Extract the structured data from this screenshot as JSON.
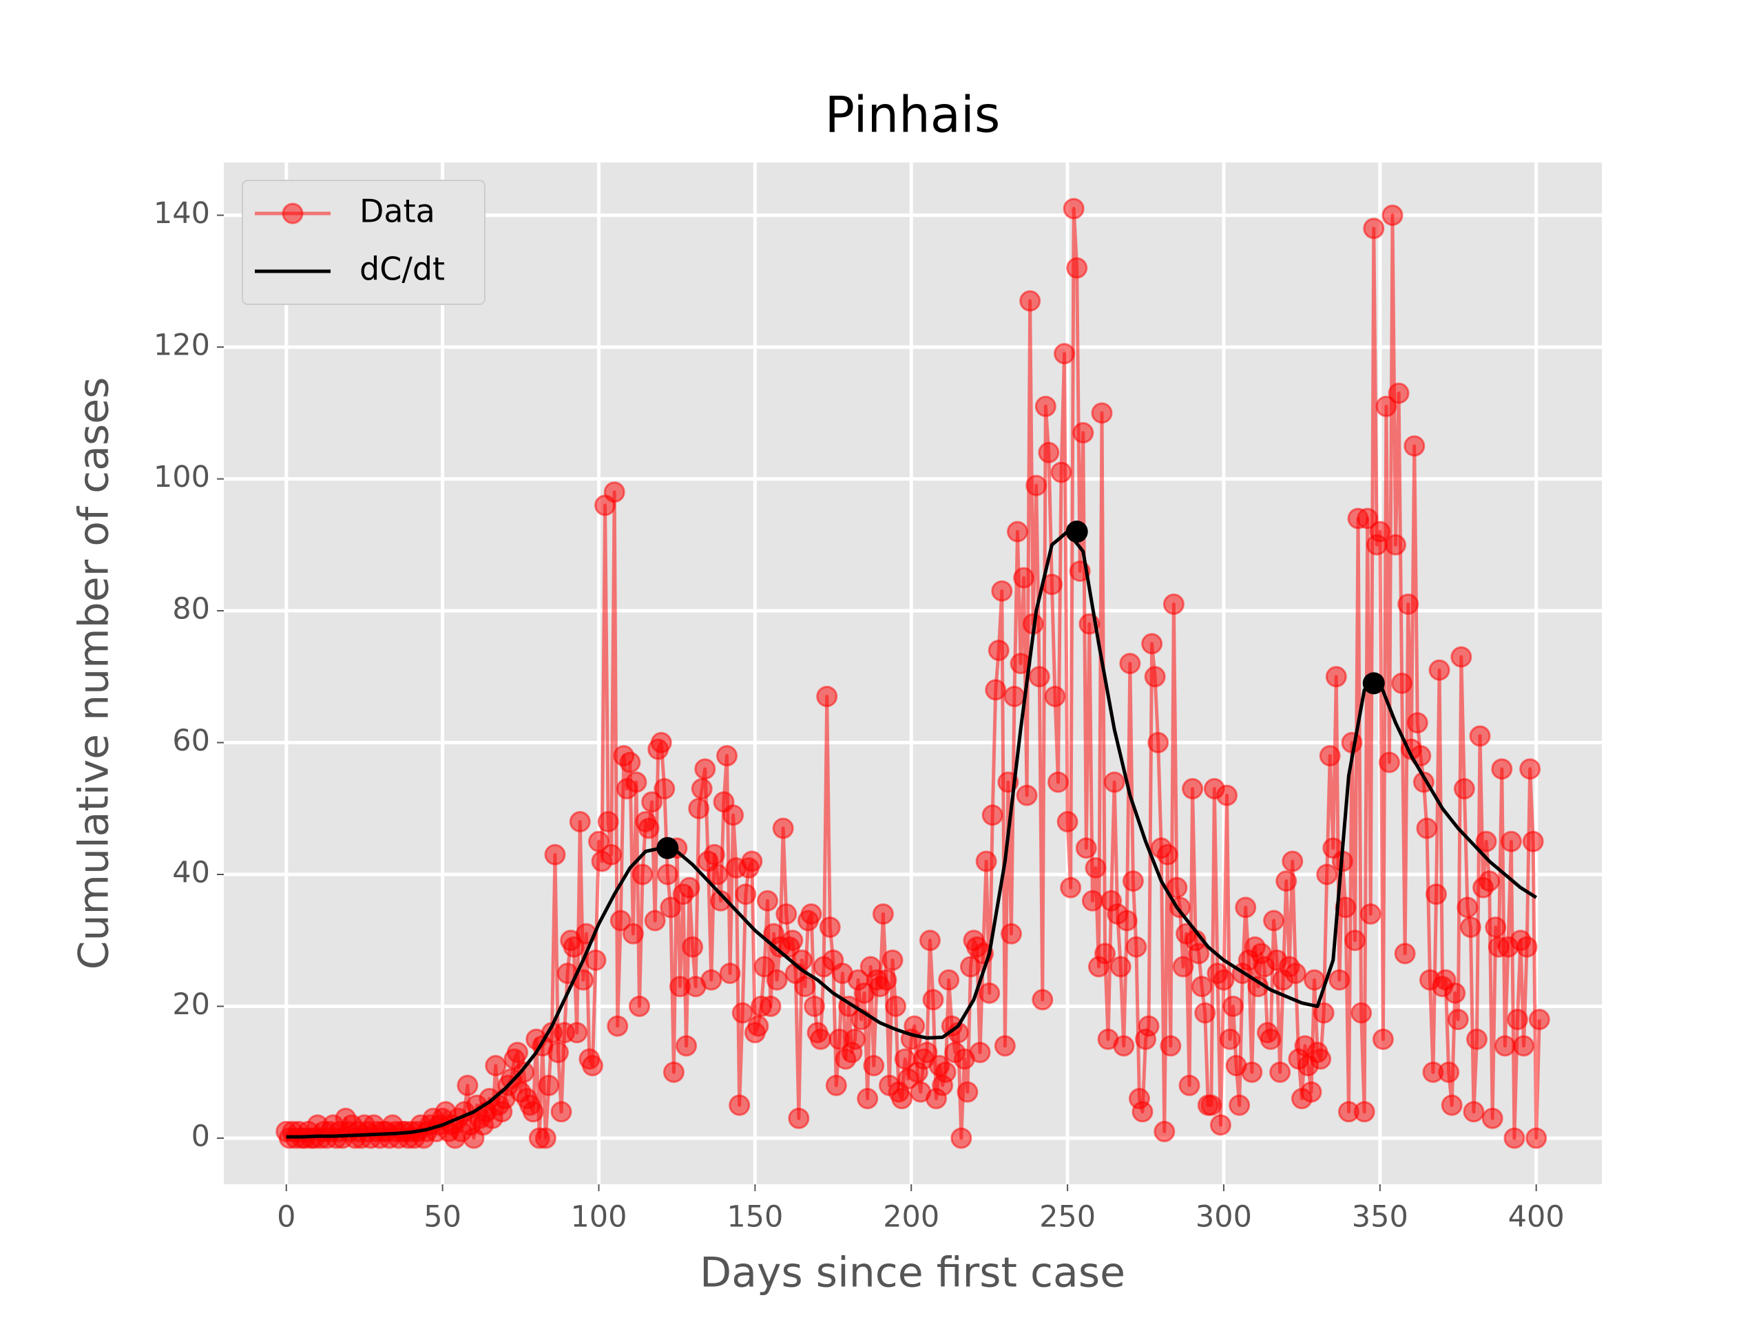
{
  "chart_data": {
    "type": "line",
    "title": "Pinhais",
    "xlabel": "Days since first case",
    "ylabel": "Cumulative number of cases",
    "xlim": [
      -20,
      421
    ],
    "ylim": [
      -7,
      148
    ],
    "xticks": [
      0,
      50,
      100,
      150,
      200,
      250,
      300,
      350,
      400
    ],
    "yticks": [
      0,
      20,
      40,
      60,
      80,
      100,
      120,
      140
    ],
    "grid": true,
    "legend": "upper left",
    "series": [
      {
        "name": "Data",
        "color": "#ff0000",
        "markers": true,
        "x": [
          0,
          1,
          2,
          3,
          4,
          5,
          6,
          7,
          8,
          9,
          10,
          11,
          12,
          13,
          14,
          15,
          16,
          17,
          18,
          19,
          20,
          21,
          22,
          23,
          24,
          25,
          26,
          27,
          28,
          29,
          30,
          31,
          32,
          33,
          34,
          35,
          36,
          37,
          38,
          39,
          40,
          41,
          42,
          43,
          44,
          45,
          46,
          47,
          48,
          49,
          50,
          51,
          52,
          53,
          54,
          55,
          56,
          57,
          58,
          59,
          60,
          61,
          62,
          63,
          64,
          65,
          66,
          67,
          68,
          69,
          70,
          71,
          72,
          73,
          74,
          75,
          76,
          77,
          78,
          79,
          80,
          81,
          82,
          83,
          84,
          85,
          86,
          87,
          88,
          89,
          90,
          91,
          92,
          93,
          94,
          95,
          96,
          97,
          98,
          99,
          100,
          101,
          102,
          103,
          104,
          105,
          106,
          107,
          108,
          109,
          110,
          111,
          112,
          113,
          114,
          115,
          116,
          117,
          118,
          119,
          120,
          121,
          122,
          123,
          124,
          125,
          126,
          127,
          128,
          129,
          130,
          131,
          132,
          133,
          134,
          135,
          136,
          137,
          138,
          139,
          140,
          141,
          142,
          143,
          144,
          145,
          146,
          147,
          148,
          149,
          150,
          151,
          152,
          153,
          154,
          155,
          156,
          157,
          158,
          159,
          160,
          161,
          162,
          163,
          164,
          165,
          166,
          167,
          168,
          169,
          170,
          171,
          172,
          173,
          174,
          175,
          176,
          177,
          178,
          179,
          180,
          181,
          182,
          183,
          184,
          185,
          186,
          187,
          188,
          189,
          190,
          191,
          192,
          193,
          194,
          195,
          196,
          197,
          198,
          199,
          200,
          201,
          202,
          203,
          204,
          205,
          206,
          207,
          208,
          209,
          210,
          211,
          212,
          213,
          214,
          215,
          216,
          217,
          218,
          219,
          220,
          221,
          222,
          223,
          224,
          225,
          226,
          227,
          228,
          229,
          230,
          231,
          232,
          233,
          234,
          235,
          236,
          237,
          238,
          239,
          240,
          241,
          242,
          243,
          244,
          245,
          246,
          247,
          248,
          249,
          250,
          251,
          252,
          253,
          254,
          255,
          256,
          257,
          258,
          259,
          260,
          261,
          262,
          263,
          264,
          265,
          266,
          267,
          268,
          269,
          270,
          271,
          272,
          273,
          274,
          275,
          276,
          277,
          278,
          279,
          280,
          281,
          282,
          283,
          284,
          285,
          286,
          287,
          288,
          289,
          290,
          291,
          292,
          293,
          294,
          295,
          296,
          297,
          298,
          299,
          300,
          301,
          302,
          303,
          304,
          305,
          306,
          307,
          308,
          309,
          310,
          311,
          312,
          313,
          314,
          315,
          316,
          317,
          318,
          319,
          320,
          321,
          322,
          323,
          324,
          325,
          326,
          327,
          328,
          329,
          330,
          331,
          332,
          333,
          334,
          335,
          336,
          337,
          338,
          339,
          340,
          341,
          342,
          343,
          344,
          345,
          346,
          347,
          348,
          349,
          350,
          351,
          352,
          353,
          354,
          355,
          356,
          357,
          358,
          359,
          360,
          361,
          362,
          363,
          364,
          365,
          366,
          367,
          368,
          369,
          370,
          371,
          372,
          373,
          374,
          375,
          376,
          377,
          378,
          379,
          380,
          381,
          382,
          383,
          384,
          385,
          386,
          387,
          388,
          389,
          390,
          391,
          392,
          393,
          394,
          395,
          396,
          397,
          398,
          399,
          400,
          401
        ],
        "values": [
          1,
          0,
          1,
          0,
          1,
          0,
          0,
          1,
          0,
          0,
          2,
          0,
          1,
          0,
          1,
          2,
          0,
          1,
          0,
          3,
          1,
          2,
          0,
          1,
          0,
          2,
          1,
          0,
          2,
          1,
          0,
          1,
          1,
          0,
          2,
          1,
          0,
          1,
          1,
          0,
          1,
          0,
          1,
          2,
          0,
          1,
          2,
          3,
          1,
          2,
          3,
          4,
          1,
          2,
          0,
          3,
          1,
          4,
          8,
          2,
          0,
          5,
          3,
          2,
          4,
          6,
          3,
          11,
          5,
          4,
          6,
          8,
          9,
          12,
          13,
          7,
          10,
          6,
          5,
          4,
          15,
          0,
          14,
          0,
          8,
          16,
          43,
          13,
          4,
          16,
          25,
          30,
          29,
          16,
          48,
          24,
          31,
          12,
          11,
          27,
          45,
          42,
          96,
          48,
          43,
          98,
          17,
          33,
          58,
          53,
          57,
          31,
          54,
          20,
          40,
          48,
          47,
          51,
          33,
          59,
          60,
          53,
          40,
          35,
          10,
          44,
          23,
          37,
          14,
          38,
          29,
          23,
          50,
          53,
          56,
          42,
          24,
          43,
          40,
          36,
          51,
          58,
          25,
          49,
          41,
          5,
          19,
          37,
          41,
          42,
          16,
          17,
          20,
          26,
          36,
          20,
          31,
          24,
          29,
          47,
          34,
          29,
          30,
          25,
          3,
          27,
          23,
          33,
          34,
          20,
          16,
          15,
          26,
          67,
          32,
          27,
          8,
          15,
          25,
          12,
          20,
          13,
          15,
          24,
          18,
          22,
          6,
          26,
          11,
          24,
          23,
          34,
          24,
          8,
          27,
          20,
          7,
          6,
          12,
          9,
          15,
          17,
          10,
          7,
          12,
          13,
          30,
          21,
          6,
          11,
          8,
          10,
          24,
          17,
          13,
          16,
          0,
          12,
          7,
          26,
          30,
          29,
          13,
          28,
          42,
          22,
          49,
          68,
          74,
          83,
          14,
          54,
          31,
          67,
          92,
          72,
          85,
          52,
          127,
          78,
          99,
          70,
          21,
          111,
          104,
          84,
          67,
          54,
          101,
          119,
          48,
          38,
          141,
          132,
          86,
          107,
          44,
          78,
          36,
          41,
          26,
          110,
          28,
          15,
          36,
          54,
          34,
          26,
          14,
          33,
          72,
          39,
          29,
          6,
          4,
          15,
          17,
          75,
          70,
          60,
          44,
          1,
          43,
          14,
          81,
          38,
          35,
          26,
          31,
          8,
          53,
          30,
          28,
          23,
          19,
          5,
          5,
          53,
          25,
          2,
          24,
          52,
          15,
          20,
          11,
          5,
          25,
          35,
          27,
          10,
          29,
          23,
          28,
          26,
          16,
          15,
          33,
          27,
          10,
          24,
          39,
          26,
          42,
          25,
          12,
          6,
          14,
          11,
          7,
          24,
          13,
          12,
          19,
          40,
          58,
          44,
          70,
          24,
          42,
          35,
          4,
          60,
          30,
          94,
          19,
          4,
          94,
          34,
          138,
          90,
          92,
          15,
          111,
          57,
          140,
          90,
          113,
          69,
          28,
          81,
          59,
          105,
          63,
          58,
          54,
          47,
          24,
          10,
          37,
          71,
          23,
          24,
          10,
          5,
          22,
          18,
          73,
          53,
          35,
          32,
          4,
          15,
          61,
          38,
          45,
          39,
          3,
          32,
          29,
          56,
          14,
          29,
          45,
          0,
          18,
          30,
          14,
          29,
          56,
          45,
          0,
          18
        ]
      },
      {
        "name": "dC/dt",
        "color": "#000000",
        "markers": false,
        "x": [
          0,
          5,
          10,
          15,
          20,
          25,
          30,
          35,
          40,
          45,
          50,
          55,
          60,
          65,
          70,
          75,
          80,
          85,
          90,
          95,
          100,
          105,
          110,
          115,
          120,
          125,
          130,
          135,
          140,
          145,
          150,
          155,
          160,
          165,
          170,
          175,
          180,
          185,
          190,
          195,
          200,
          205,
          210,
          215,
          220,
          225,
          230,
          235,
          240,
          245,
          250,
          255,
          260,
          265,
          270,
          275,
          280,
          285,
          290,
          295,
          300,
          305,
          310,
          315,
          320,
          325,
          330,
          335,
          340,
          345,
          350,
          355,
          360,
          365,
          370,
          375,
          380,
          385,
          390,
          395,
          400
        ],
        "values": [
          0.2,
          0.2,
          0.3,
          0.3,
          0.4,
          0.5,
          0.6,
          0.7,
          0.9,
          1.3,
          2,
          3,
          4,
          5.5,
          7.5,
          10,
          13,
          17,
          22,
          27,
          32.5,
          37,
          41,
          43.5,
          44,
          43.5,
          41.5,
          39,
          36.5,
          34,
          31.5,
          29.5,
          27.5,
          25.5,
          24,
          22,
          20.5,
          19,
          17.5,
          16.5,
          15.7,
          15.2,
          15.3,
          17,
          21,
          28,
          42,
          62,
          80,
          90,
          92,
          89,
          75,
          62,
          52,
          45,
          39,
          35,
          32,
          29,
          27,
          25.5,
          24,
          22.5,
          21.5,
          20.5,
          20,
          27,
          55,
          68,
          69,
          63,
          58,
          54,
          50,
          47,
          44.5,
          42,
          40,
          38,
          36.5
        ]
      }
    ],
    "peaks": {
      "color": "#000000",
      "x": [
        122,
        253,
        348
      ],
      "values": [
        44,
        92,
        69
      ]
    }
  }
}
